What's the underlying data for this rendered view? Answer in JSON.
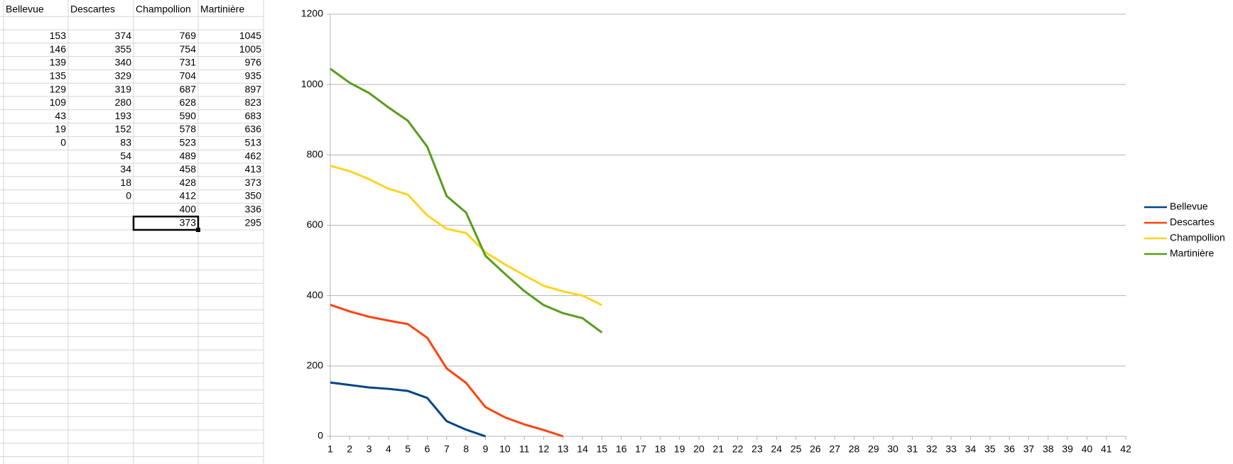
{
  "chart_data": {
    "type": "line",
    "x": [
      1,
      2,
      3,
      4,
      5,
      6,
      7,
      8,
      9,
      10,
      11,
      12,
      13,
      14,
      15,
      16,
      17,
      18,
      19,
      20,
      21,
      22,
      23,
      24,
      25,
      26,
      27,
      28,
      29,
      30,
      31,
      32,
      33,
      34,
      35,
      36,
      37,
      38,
      39,
      40,
      41,
      42
    ],
    "xlim": [
      1,
      42
    ],
    "ylim": [
      0,
      1200
    ],
    "yticks": [
      0,
      200,
      400,
      600,
      800,
      1000,
      1200
    ],
    "grid": true,
    "legend": "right",
    "series": [
      {
        "name": "Bellevue",
        "color": "#004586",
        "values": [
          153,
          146,
          139,
          135,
          129,
          109,
          43,
          19,
          0,
          null,
          null,
          null,
          null,
          null,
          null,
          null,
          null,
          null,
          null,
          null,
          null,
          null,
          null,
          null,
          null,
          null,
          null,
          null,
          null,
          null,
          null,
          null,
          null,
          null,
          null,
          null,
          null,
          null,
          null,
          null,
          null,
          null
        ]
      },
      {
        "name": "Descartes",
        "color": "#ff420e",
        "values": [
          374,
          355,
          340,
          329,
          319,
          280,
          193,
          152,
          83,
          54,
          34,
          18,
          0,
          null,
          null,
          null,
          null,
          null,
          null,
          null,
          null,
          null,
          null,
          null,
          null,
          null,
          null,
          null,
          null,
          null,
          null,
          null,
          null,
          null,
          null,
          null,
          null,
          null,
          null,
          null,
          null,
          null
        ]
      },
      {
        "name": "Champollion",
        "color": "#ffd320",
        "values": [
          769,
          754,
          731,
          704,
          687,
          628,
          590,
          578,
          523,
          489,
          458,
          428,
          412,
          400,
          373,
          null,
          null,
          null,
          null,
          null,
          null,
          null,
          null,
          null,
          null,
          null,
          null,
          null,
          null,
          null,
          null,
          null,
          null,
          null,
          null,
          null,
          null,
          null,
          null,
          null,
          null,
          null
        ]
      },
      {
        "name": "Martinière",
        "color": "#579d1c",
        "values": [
          1045,
          1005,
          976,
          935,
          897,
          823,
          683,
          636,
          513,
          462,
          413,
          373,
          350,
          336,
          295,
          null,
          null,
          null,
          null,
          null,
          null,
          null,
          null,
          null,
          null,
          null,
          null,
          null,
          null,
          null,
          null,
          null,
          null,
          null,
          null,
          null,
          null,
          null,
          null,
          null,
          null,
          null
        ]
      }
    ]
  }
}
